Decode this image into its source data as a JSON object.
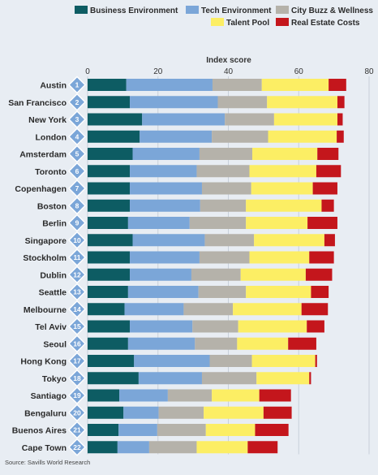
{
  "chart_data": {
    "type": "bar",
    "orientation": "horizontal",
    "stacked": true,
    "title": "",
    "xlabel": "Index score",
    "ylabel": "",
    "xlim": [
      0,
      80
    ],
    "xticks": [
      0,
      20,
      40,
      60,
      80
    ],
    "grid": true,
    "legend_position": "top",
    "categories": [
      "Austin",
      "San Francisco",
      "New York",
      "London",
      "Amsterdam",
      "Toronto",
      "Copenhagen",
      "Boston",
      "Berlin",
      "Singapore",
      "Stockholm",
      "Dublin",
      "Seattle",
      "Melbourne",
      "Tel Aviv",
      "Seoul",
      "Hong Kong",
      "Tokyo",
      "Santiago",
      "Bengaluru",
      "Buenos Aires",
      "Cape Town"
    ],
    "ranks": [
      "1",
      "2",
      "3",
      "4",
      "5",
      "6",
      "7",
      "8",
      "9",
      "10",
      "11",
      "12",
      "13",
      "14",
      "15",
      "16",
      "17",
      "18",
      "19",
      "20",
      "21",
      "22"
    ],
    "series": [
      {
        "name": "Business Environment",
        "color": "#0d5c63",
        "values": [
          11.0,
          12.0,
          15.5,
          14.8,
          12.8,
          12.0,
          12.0,
          12.0,
          11.5,
          12.8,
          12.0,
          12.0,
          11.5,
          10.5,
          12.0,
          11.5,
          13.2,
          14.5,
          9.0,
          10.2,
          8.8,
          8.5
        ]
      },
      {
        "name": "Tech Environment",
        "color": "#7ba6d8",
        "values": [
          24.5,
          25.0,
          23.5,
          20.5,
          19.0,
          19.0,
          20.5,
          20.0,
          17.5,
          20.5,
          19.8,
          17.5,
          20.0,
          16.8,
          17.8,
          19.0,
          21.5,
          18.0,
          13.8,
          10.0,
          11.0,
          9.0
        ]
      },
      {
        "name": "City Buzz & Wellness",
        "color": "#b5b2aa",
        "values": [
          14.0,
          14.0,
          14.0,
          16.0,
          15.0,
          15.0,
          14.0,
          13.0,
          16.0,
          14.0,
          14.2,
          14.0,
          13.5,
          14.0,
          13.0,
          12.0,
          12.0,
          15.5,
          12.5,
          12.8,
          13.8,
          13.5
        ]
      },
      {
        "name": "Talent Pool",
        "color": "#fcee64",
        "values": [
          19.0,
          20.0,
          18.0,
          19.5,
          18.5,
          19.0,
          17.5,
          21.5,
          17.5,
          20.0,
          17.0,
          18.5,
          18.5,
          19.5,
          19.5,
          14.5,
          18.0,
          15.0,
          13.5,
          17.0,
          14.0,
          14.5
        ]
      },
      {
        "name": "Real Estate Costs",
        "color": "#c4161c",
        "values": [
          5.0,
          2.0,
          1.5,
          2.0,
          6.0,
          7.0,
          7.0,
          3.5,
          8.5,
          3.0,
          7.0,
          7.5,
          5.0,
          7.5,
          5.0,
          8.0,
          0.5,
          0.5,
          9.0,
          8.0,
          9.5,
          8.5
        ]
      }
    ]
  },
  "source": "Source: Savills World Research"
}
